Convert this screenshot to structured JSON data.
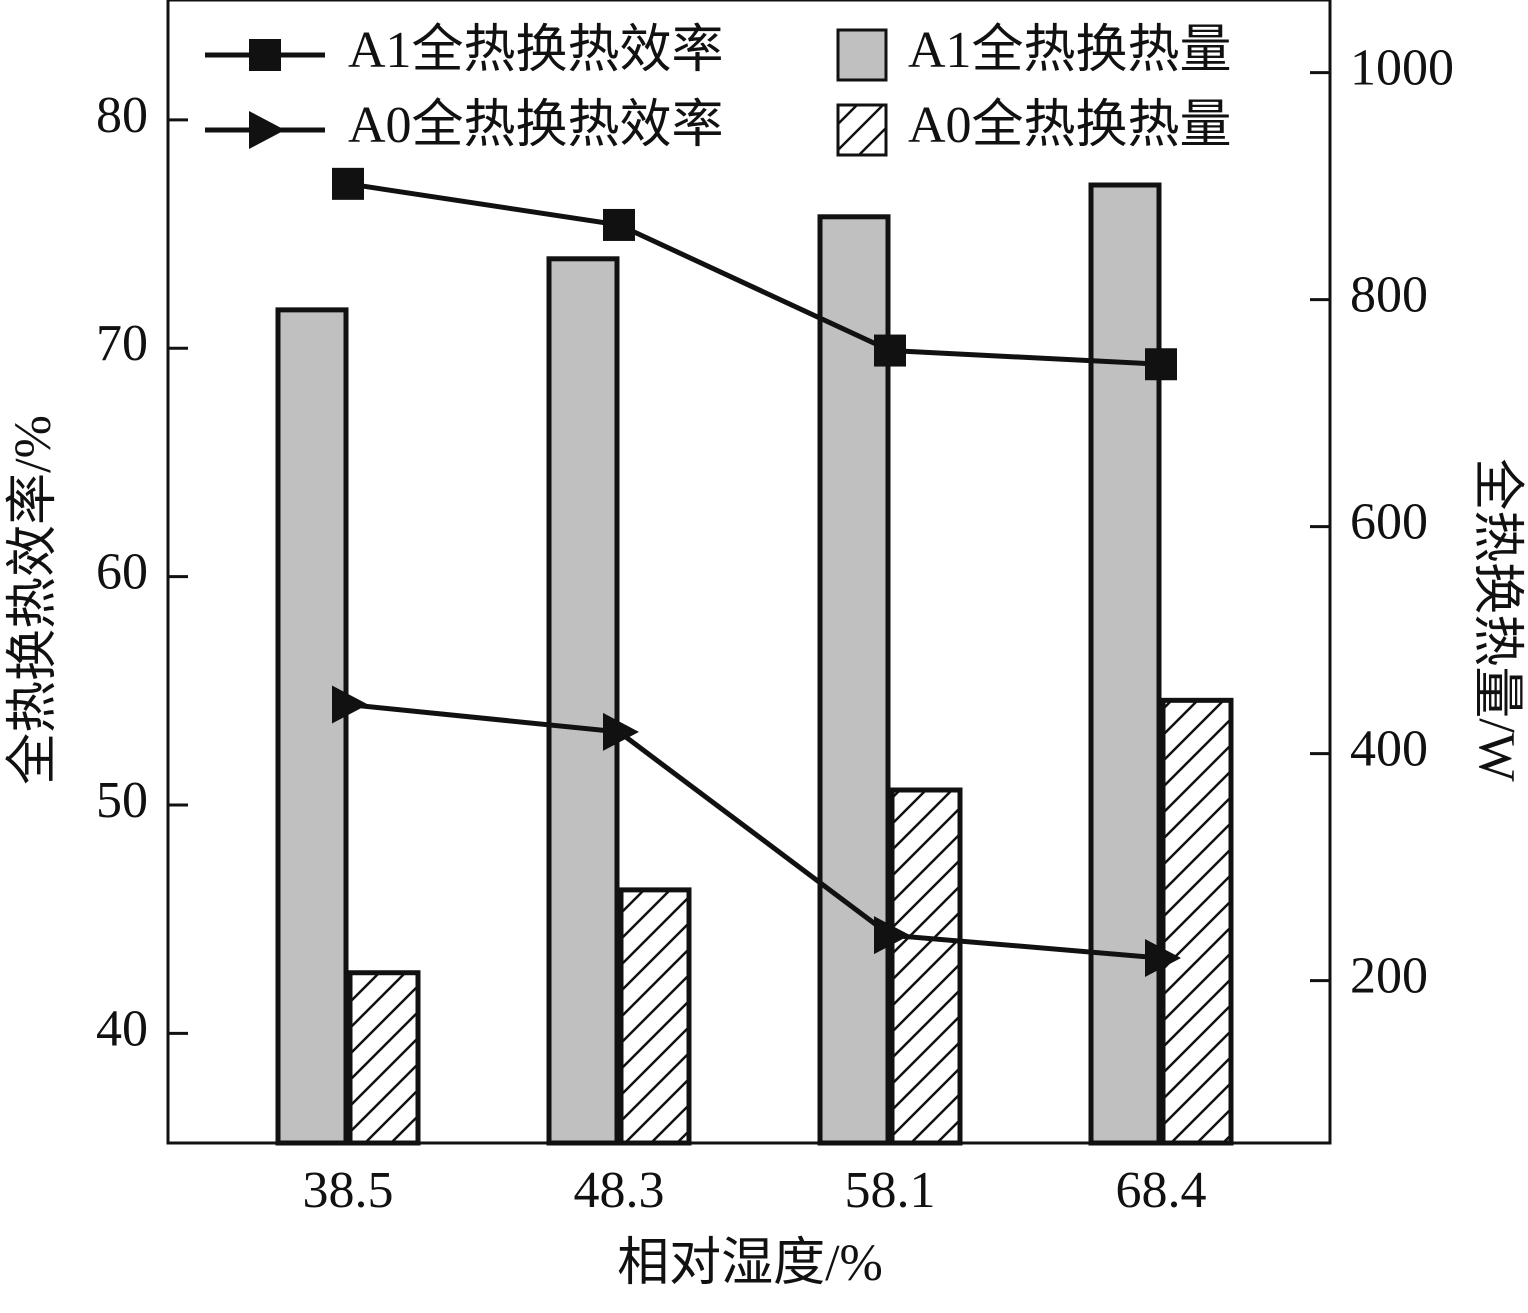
{
  "chart_data": {
    "type": "bar",
    "x_label": "相对湿度/%",
    "y_label": "全热换热效率/%",
    "y2_label": "全热换热量/W",
    "categories": [
      "38.5",
      "48.3",
      "58.1",
      "68.4"
    ],
    "ylim": [
      35.2,
      85.25
    ],
    "yticks": [
      40,
      50,
      60,
      70,
      80
    ],
    "y2lim": [
      57,
      1064
    ],
    "y2ticks": [
      200,
      400,
      600,
      800,
      1000
    ],
    "series": [
      {
        "name": "A1全热换热效率",
        "type": "line",
        "marker": "square",
        "color": "#111111",
        "values": [
          77.2,
          75.4,
          69.9,
          69.3
        ]
      },
      {
        "name": "A0全热换热效率",
        "type": "line",
        "marker": "triangle-right",
        "color": "#111111",
        "values": [
          54.4,
          53.2,
          44.3,
          43.3
        ]
      },
      {
        "name": "A1全热换热量",
        "type": "bar",
        "axis": "y2",
        "color": "#c0c0c0",
        "values": [
          791,
          836,
          873,
          901
        ]
      },
      {
        "name": "A0全热换热量",
        "type": "bar",
        "axis": "y2",
        "color": "#ffffff",
        "pattern": "hatch",
        "values": [
          207,
          280,
          368,
          447
        ]
      }
    ]
  }
}
